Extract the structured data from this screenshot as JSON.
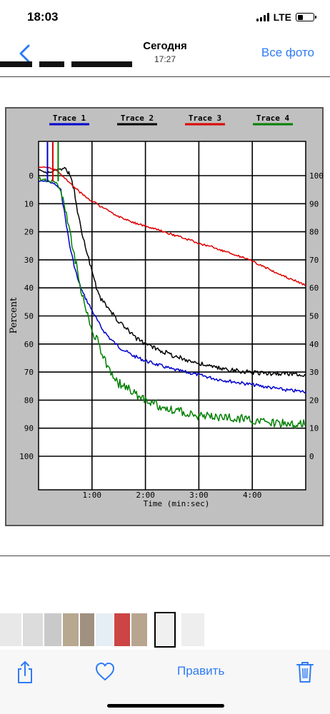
{
  "status_bar": {
    "time": "18:03",
    "network": "LTE"
  },
  "nav": {
    "title": "Сегодня",
    "subtitle": "17:27",
    "action_label": "Все фото"
  },
  "toolbar": {
    "edit_label": "Править"
  },
  "icons": {
    "back": "chevron-left-icon",
    "share": "share-icon",
    "favorite": "heart-icon",
    "delete": "trash-icon"
  },
  "colors": {
    "accent": "#2f7bf5",
    "trace1": "#0000cc",
    "trace2": "#000000",
    "trace3": "#dd0000",
    "trace4": "#008000",
    "chart_bg": "#c0c0c0"
  },
  "chart_data": {
    "type": "line",
    "title": "",
    "xlabel": "Time (min:sec)",
    "ylabel": "Percent",
    "x_ticks": [
      "1:00",
      "2:00",
      "3:00",
      "4:00"
    ],
    "left_ticks": [
      "0",
      "10",
      "20",
      "30",
      "40",
      "50",
      "60",
      "70",
      "80",
      "90",
      "100"
    ],
    "right_ticks": [
      "100",
      "90",
      "80",
      "70",
      "60",
      "50",
      "40",
      "30",
      "20",
      "10",
      "0"
    ],
    "xlim_sec": [
      0,
      300
    ],
    "ylim_percent": [
      -12,
      112
    ],
    "grid": true,
    "legend_position": "top",
    "series": [
      {
        "name": "Trace 1",
        "color": "#0000cc",
        "noise": 0.6,
        "x": [
          0,
          10,
          18,
          25,
          30,
          35,
          40,
          45,
          50,
          55,
          60,
          70,
          80,
          90,
          105,
          120,
          135,
          150,
          165,
          180,
          200,
          220,
          240,
          260,
          280,
          300
        ],
        "y": [
          2,
          2,
          3,
          5,
          15,
          25,
          32,
          38,
          42,
          45,
          48,
          54,
          58,
          61,
          64,
          66,
          67.5,
          69,
          70,
          71,
          72.5,
          73.5,
          74.5,
          75.5,
          76.5,
          77
        ]
      },
      {
        "name": "Trace 2",
        "color": "#000000",
        "noise": 0.8,
        "x": [
          0,
          10,
          20,
          28,
          32,
          35,
          40,
          45,
          50,
          55,
          60,
          65,
          70,
          80,
          90,
          100,
          110,
          120,
          135,
          150,
          165,
          180,
          200,
          220,
          240,
          260,
          280,
          300
        ],
        "y": [
          -2,
          -1,
          -2,
          -3,
          -2,
          0,
          5,
          15,
          22,
          28,
          34,
          40,
          44,
          48,
          52,
          55,
          58,
          60,
          62,
          64,
          65.5,
          67,
          68.5,
          69.5,
          70,
          70.5,
          70.5,
          71
        ]
      },
      {
        "name": "Trace 3",
        "color": "#dd0000",
        "noise": 0.4,
        "x": [
          0,
          10,
          20,
          30,
          40,
          50,
          60,
          70,
          80,
          100,
          120,
          140,
          160,
          180,
          200,
          220,
          240,
          260,
          280,
          300
        ],
        "y": [
          -3,
          -3,
          -2,
          1,
          4,
          7,
          9,
          11,
          13,
          16,
          18,
          20,
          22,
          24,
          26,
          28,
          30.5,
          33.5,
          36.5,
          39
        ]
      },
      {
        "name": "Trace 4",
        "color": "#008000",
        "noise": 1.6,
        "x": [
          0,
          10,
          20,
          25,
          30,
          35,
          40,
          45,
          50,
          55,
          60,
          65,
          70,
          75,
          80,
          90,
          100,
          110,
          120,
          135,
          150,
          165,
          180,
          200,
          220,
          240,
          260,
          280,
          300
        ],
        "y": [
          1,
          2,
          2,
          5,
          12,
          20,
          28,
          36,
          44,
          50,
          55,
          58,
          62,
          66,
          70,
          74,
          76,
          78,
          80,
          82,
          83.5,
          84.5,
          85.5,
          86,
          86.5,
          87,
          88,
          88.5,
          88.5
        ]
      }
    ]
  }
}
